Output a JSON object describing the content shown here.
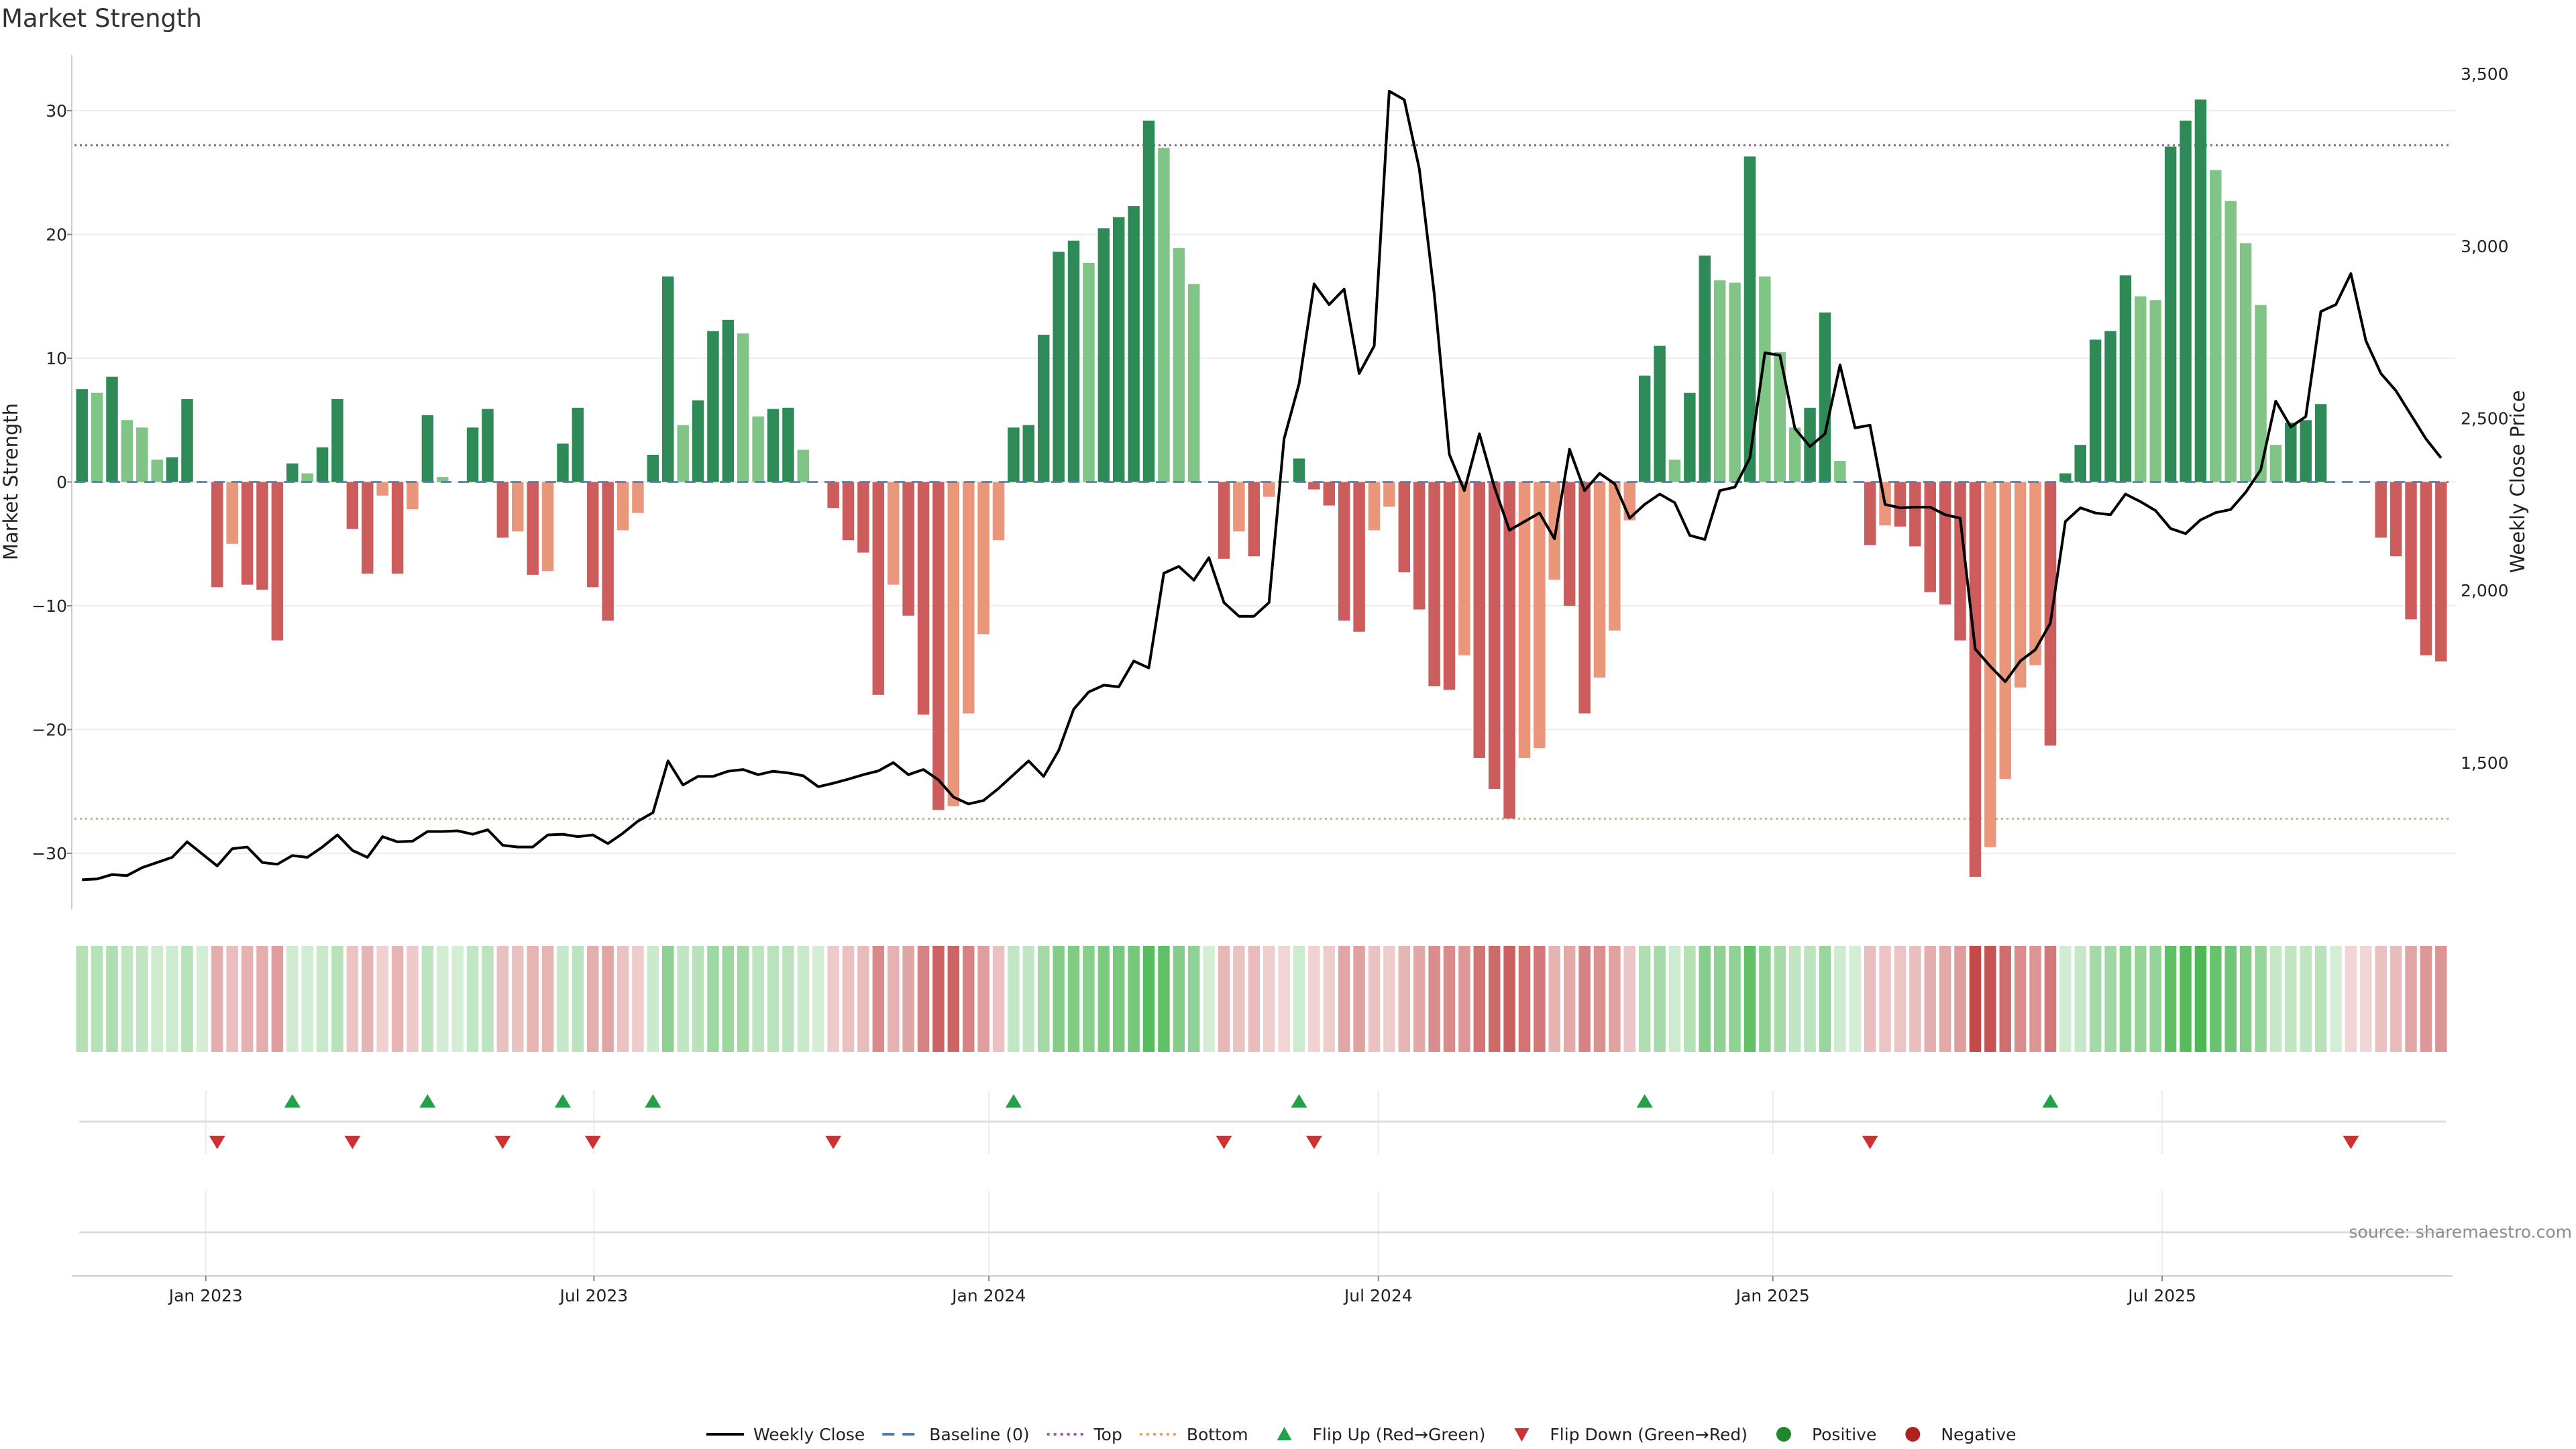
{
  "chart_data": {
    "type": "bar",
    "title": "Market Strength",
    "ylabel_left": "Market Strength",
    "ylabel_right": "Weekly Close Price",
    "source": "source: sharemaestro.com",
    "ylim_left": [
      -34.5,
      34.5
    ],
    "ylim_right": [
      1075,
      3555
    ],
    "yticks_left": [
      30,
      20,
      10,
      0,
      -10,
      -20,
      -30
    ],
    "yticks_left_labels": [
      "30",
      "20",
      "10",
      "0",
      "−10",
      "−20",
      "−30"
    ],
    "yticks_right": [
      3500,
      3000,
      2500,
      2000,
      1500
    ],
    "yticks_right_labels": [
      "3,500",
      "3,000",
      "2,500",
      "2,000",
      "1,500"
    ],
    "x_range": [
      0,
      160
    ],
    "x_ticks": [
      {
        "label": "Jan 2023",
        "x": 8.24
      },
      {
        "label": "Jul 2023",
        "x": 34.07
      },
      {
        "label": "Jan 2024",
        "x": 60.36
      },
      {
        "label": "Jul 2024",
        "x": 86.28
      },
      {
        "label": "Jan 2025",
        "x": 112.53
      },
      {
        "label": "Jul 2025",
        "x": 138.44
      }
    ],
    "top_threshold": 27.2,
    "bottom_threshold": -27.2,
    "strength": [
      7.5,
      7.2,
      8.5,
      5.0,
      4.4,
      1.8,
      2.0,
      6.7,
      0.0,
      -8.5,
      -5.0,
      -8.3,
      -8.7,
      -12.8,
      1.5,
      0.7,
      2.8,
      6.7,
      -3.8,
      -7.4,
      -1.1,
      -7.4,
      -2.2,
      5.4,
      0.4,
      0.0,
      4.4,
      5.9,
      -4.5,
      -4.0,
      -7.5,
      -7.2,
      3.1,
      6.0,
      -8.5,
      -11.2,
      -3.9,
      -2.5,
      2.2,
      16.6,
      4.6,
      6.6,
      12.2,
      13.1,
      12.0,
      5.3,
      5.9,
      6.0,
      2.6,
      0.0,
      -2.1,
      -4.7,
      -5.7,
      -17.2,
      -8.3,
      -10.8,
      -18.8,
      -26.5,
      -26.2,
      -18.7,
      -12.3,
      -4.7,
      4.4,
      4.6,
      11.9,
      18.6,
      19.5,
      17.7,
      20.5,
      21.4,
      22.3,
      29.2,
      27.0,
      18.9,
      16.0,
      0.0,
      -6.2,
      -4.0,
      -6.0,
      -1.2,
      0.0,
      1.9,
      -0.6,
      -1.9,
      -11.2,
      -12.1,
      -3.9,
      -2.0,
      -7.3,
      -10.3,
      -16.5,
      -16.8,
      -14.0,
      -22.3,
      -24.8,
      -27.2,
      -22.3,
      -21.5,
      -7.9,
      -10.0,
      -18.7,
      -15.8,
      -12.0,
      -3.1,
      8.6,
      11.0,
      1.8,
      7.2,
      18.3,
      16.3,
      16.1,
      26.3,
      16.6,
      10.5,
      4.4,
      6.0,
      13.7,
      1.7,
      0.0,
      -5.1,
      -3.5,
      -3.6,
      -5.2,
      -8.9,
      -9.9,
      -12.8,
      -31.9,
      -29.5,
      -24.0,
      -16.6,
      -14.8,
      -21.3,
      0.7,
      3.0,
      11.5,
      12.2,
      16.7,
      15.0,
      14.7,
      27.1,
      29.2,
      30.9,
      25.2,
      22.7,
      19.3,
      14.3,
      3.0,
      4.8,
      5.0,
      6.3,
      0.0,
      0.0,
      0.0,
      -4.5,
      -6.0,
      -11.1,
      -14.0,
      -14.5
    ],
    "weekly_close": [
      1160,
      1162,
      1175,
      1172,
      1195,
      1210,
      1225,
      1270,
      1235,
      1200,
      1250,
      1255,
      1210,
      1205,
      1230,
      1225,
      1255,
      1290,
      1245,
      1225,
      1285,
      1270,
      1272,
      1300,
      1300,
      1302,
      1292,
      1305,
      1260,
      1255,
      1255,
      1290,
      1292,
      1285,
      1290,
      1265,
      1295,
      1330,
      1355,
      1505,
      1435,
      1460,
      1460,
      1475,
      1480,
      1465,
      1475,
      1470,
      1462,
      1430,
      1440,
      1452,
      1465,
      1476,
      1500,
      1465,
      1480,
      1450,
      1400,
      1380,
      1390,
      1425,
      1465,
      1505,
      1460,
      1535,
      1655,
      1705,
      1725,
      1720,
      1795,
      1775,
      2050,
      2070,
      2030,
      2095,
      1965,
      1925,
      1925,
      1965,
      2440,
      2600,
      2890,
      2830,
      2875,
      2630,
      2710,
      3450,
      3425,
      3225,
      2860,
      2395,
      2290,
      2455,
      2300,
      2175,
      2200,
      2225,
      2150,
      2410,
      2290,
      2340,
      2310,
      2210,
      2250,
      2280,
      2255,
      2160,
      2148,
      2290,
      2300,
      2385,
      2690,
      2683,
      2470,
      2418,
      2455,
      2655,
      2472,
      2480,
      2250,
      2240,
      2242,
      2242,
      2220,
      2210,
      1830,
      1780,
      1735,
      1795,
      1828,
      1905,
      2200,
      2240,
      2225,
      2220,
      2280,
      2258,
      2232,
      2180,
      2165,
      2205,
      2226,
      2235,
      2285,
      2350,
      2550,
      2475,
      2505,
      2810,
      2830,
      2920,
      2725,
      2630,
      2580,
      2510,
      2440,
      2385
    ],
    "bar_colors": [
      {
        "name": "strong_green",
        "hex": "#2e8b57"
      },
      {
        "name": "light_green",
        "hex": "#80c486"
      },
      {
        "name": "strong_red",
        "hex": "#cd5c5c"
      },
      {
        "name": "light_red",
        "hex": "#e9967a"
      }
    ],
    "heat_strip_colors": {
      "positive": "#3cb043",
      "negative": "#bf3b3b"
    },
    "flip_up_x": [
      14.0,
      23.0,
      32.0,
      38.0,
      62.0,
      81.0,
      104.0,
      131.0
    ],
    "flip_down_x": [
      9.0,
      18.0,
      28.0,
      34.0,
      50.0,
      76.0,
      82.0,
      119.0,
      151.0
    ],
    "legend": [
      {
        "label": "Weekly Close",
        "symbol": "line",
        "color": "#000000"
      },
      {
        "label": "Baseline (0)",
        "symbol": "dashed",
        "color": "#4a7fb0"
      },
      {
        "label": "Top",
        "symbol": "dotted",
        "color": "#a855b0"
      },
      {
        "label": "Bottom",
        "symbol": "dotted",
        "color": "#f0a060"
      },
      {
        "label": "Flip Up (Red→Green)",
        "symbol": "triangle-up",
        "color": "#22a04a"
      },
      {
        "label": "Flip Down (Green→Red)",
        "symbol": "triangle-down",
        "color": "#d03030"
      },
      {
        "label": "Positive",
        "symbol": "circle",
        "color": "#22862a"
      },
      {
        "label": "Negative",
        "symbol": "circle",
        "color": "#b02222"
      }
    ]
  }
}
